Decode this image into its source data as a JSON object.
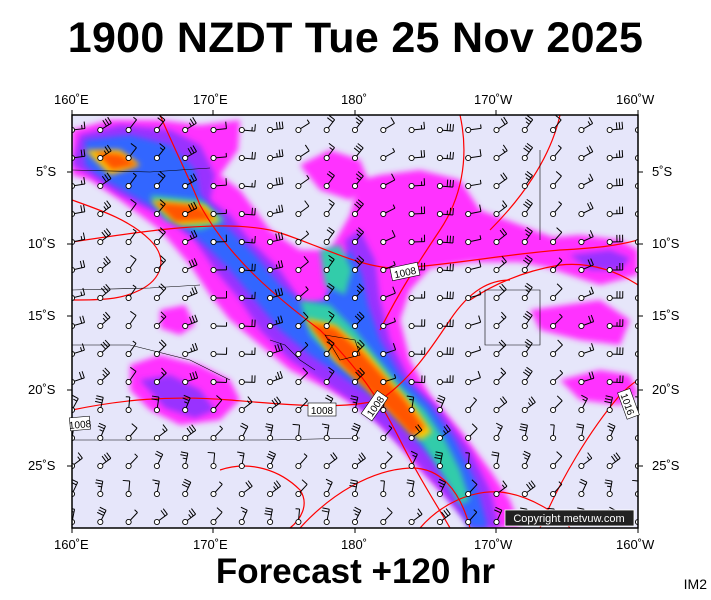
{
  "header": {
    "title": "1900 NZDT Tue 25 Nov 2025"
  },
  "footer": {
    "forecast": "Forecast +120 hr",
    "code": "IM2"
  },
  "map": {
    "lon_labels": [
      "160˚E",
      "170˚E",
      "180˚",
      "170˚W",
      "160˚W"
    ],
    "lat_labels": [
      "5˚S",
      "10˚S",
      "15˚S",
      "20˚S",
      "25˚S"
    ],
    "isobar_labels": [
      "1008",
      "1008",
      "1008",
      "1008",
      "1016"
    ],
    "copyright": "Copyright metvuw.com",
    "colors": {
      "background": "#e6e6fa",
      "rain_light": "#ff33ff",
      "rain_moderate": "#9933ff",
      "rain_heavy": "#3366ff",
      "rain_very_heavy": "#33ccaa",
      "rain_extreme": "#ff6600",
      "isobar": "#ff0000"
    }
  }
}
